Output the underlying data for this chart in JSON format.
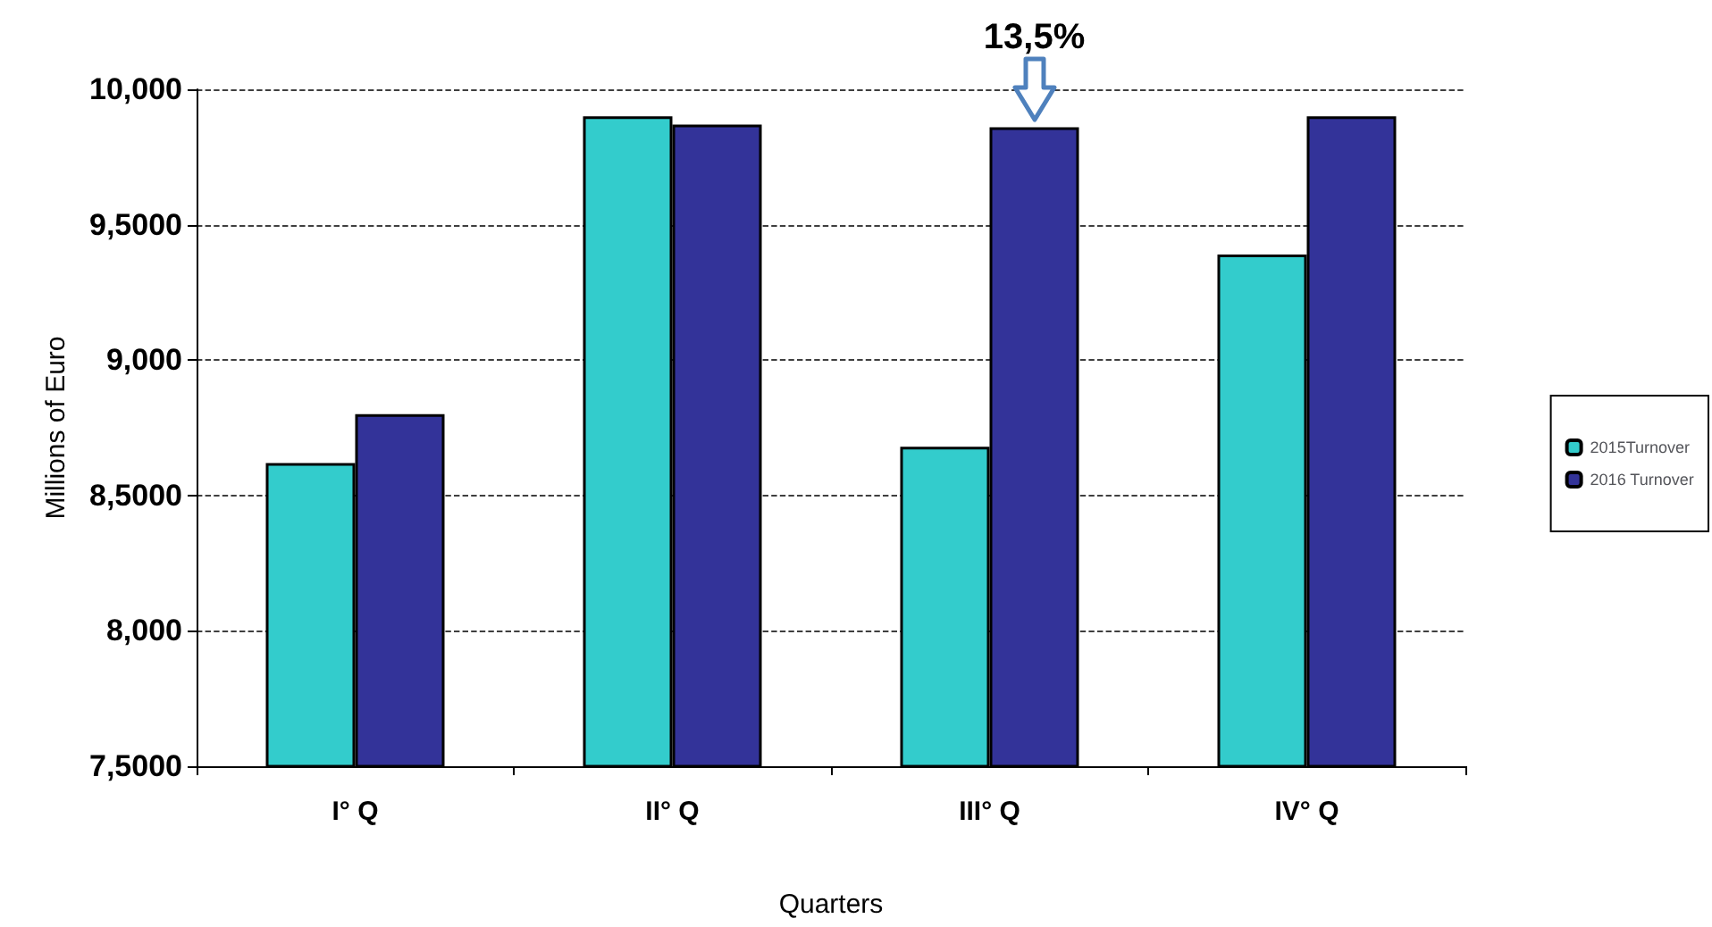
{
  "chart_data": {
    "type": "bar",
    "xlabel": "Quarters",
    "ylabel": "Millions of Euro",
    "categories": [
      "I° Q",
      "II° Q",
      "III° Q",
      "IV° Q"
    ],
    "series": [
      {
        "name": "2015Turnover",
        "color": "#33cccc",
        "values": [
          8620,
          9900,
          8680,
          9390
        ]
      },
      {
        "name": "2016 Turnover",
        "color": "#333399",
        "values": [
          8800,
          9870,
          9860,
          9900
        ]
      }
    ],
    "ylim": [
      7500,
      10000
    ],
    "yticks": [
      {
        "value": 7500,
        "label": "7,5000"
      },
      {
        "value": 8000,
        "label": "8,000"
      },
      {
        "value": 8500,
        "label": "8,5000"
      },
      {
        "value": 9000,
        "label": "9,000"
      },
      {
        "value": 9500,
        "label": "9,5000"
      },
      {
        "value": 10000,
        "label": "10,000"
      }
    ],
    "grid": "y",
    "legend": "right",
    "annotations": [
      {
        "text": "13,5%",
        "x": "III° Q",
        "y": 9860
      }
    ]
  }
}
